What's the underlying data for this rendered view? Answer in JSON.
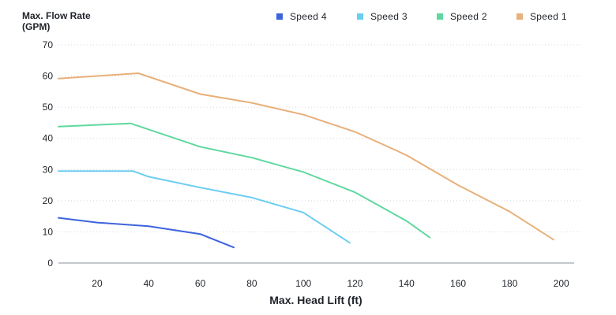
{
  "chart_data": {
    "type": "line",
    "ylabel_lines": [
      "Max. Flow Rate",
      "(GPM)"
    ],
    "xlabel": "Max. Head Lift (ft)",
    "xlim": [
      5,
      205
    ],
    "ylim": [
      0,
      70
    ],
    "x_ticks": [
      20,
      40,
      60,
      80,
      100,
      120,
      140,
      160,
      180,
      200
    ],
    "y_ticks": [
      0,
      10,
      20,
      30,
      40,
      50,
      60,
      70
    ],
    "grid": true,
    "legend_position": "top-right",
    "series": [
      {
        "name": "Speed 4",
        "color": "#3d63dd",
        "points": [
          [
            5,
            14.5
          ],
          [
            20,
            13
          ],
          [
            40,
            11.8
          ],
          [
            60,
            9.3
          ],
          [
            73,
            5
          ]
        ]
      },
      {
        "name": "Speed 3",
        "color": "#6ccdf0",
        "points": [
          [
            5,
            29.5
          ],
          [
            34,
            29.5
          ],
          [
            40,
            27.7
          ],
          [
            60,
            24.2
          ],
          [
            80,
            21
          ],
          [
            100,
            16.2
          ],
          [
            118,
            6.5
          ]
        ]
      },
      {
        "name": "Speed 2",
        "color": "#5fd8a0",
        "points": [
          [
            5,
            43.8
          ],
          [
            33,
            44.8
          ],
          [
            60,
            37.3
          ],
          [
            80,
            33.8
          ],
          [
            100,
            29.2
          ],
          [
            120,
            22.7
          ],
          [
            140,
            13.5
          ],
          [
            149,
            8.2
          ]
        ]
      },
      {
        "name": "Speed 1",
        "color": "#e8b07a",
        "points": [
          [
            5,
            59.2
          ],
          [
            36,
            60.9
          ],
          [
            60,
            54.2
          ],
          [
            80,
            51.4
          ],
          [
            100,
            47.6
          ],
          [
            120,
            42.1
          ],
          [
            140,
            34.6
          ],
          [
            160,
            25
          ],
          [
            180,
            16.5
          ],
          [
            197,
            7.5
          ]
        ]
      }
    ]
  }
}
